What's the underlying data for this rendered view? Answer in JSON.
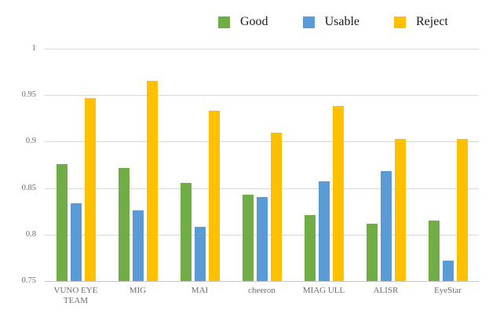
{
  "legend": {
    "items": [
      {
        "label": "Good",
        "color": "#70AD47"
      },
      {
        "label": "Usable",
        "color": "#5B9BD5"
      },
      {
        "label": "Reject",
        "color": "#FFC000"
      }
    ]
  },
  "chart_data": {
    "type": "bar",
    "title": "",
    "xlabel": "",
    "ylabel": "",
    "categories": [
      "VUNO EYE TEAM",
      "MIG",
      "MAI",
      "cheeron",
      "MIAG ULL",
      "ALISR",
      "EyeStar"
    ],
    "series": [
      {
        "name": "Good",
        "color": "#70AD47",
        "values": [
          0.876,
          0.872,
          0.856,
          0.843,
          0.821,
          0.812,
          0.815
        ]
      },
      {
        "name": "Usable",
        "color": "#5B9BD5",
        "values": [
          0.834,
          0.826,
          0.808,
          0.84,
          0.857,
          0.868,
          0.772
        ]
      },
      {
        "name": "Reject",
        "color": "#FFC000",
        "values": [
          0.947,
          0.965,
          0.933,
          0.91,
          0.938,
          0.903,
          0.903
        ]
      }
    ],
    "ylim": [
      0.75,
      1.0
    ],
    "yticks": [
      0.75,
      0.8,
      0.85,
      0.9,
      0.95,
      1
    ],
    "ytick_labels": [
      "0.75",
      "0.8",
      "0.85",
      "0.9",
      "0.95",
      "1"
    ],
    "grid": true,
    "legend_position": "top"
  },
  "colors": {
    "background": "#FFFFFF",
    "gridline": "#D9D9D9",
    "axis_line": "#C6C6C6",
    "tick_text": "#6E6E6E",
    "legend_text": "#1A1A1A"
  }
}
